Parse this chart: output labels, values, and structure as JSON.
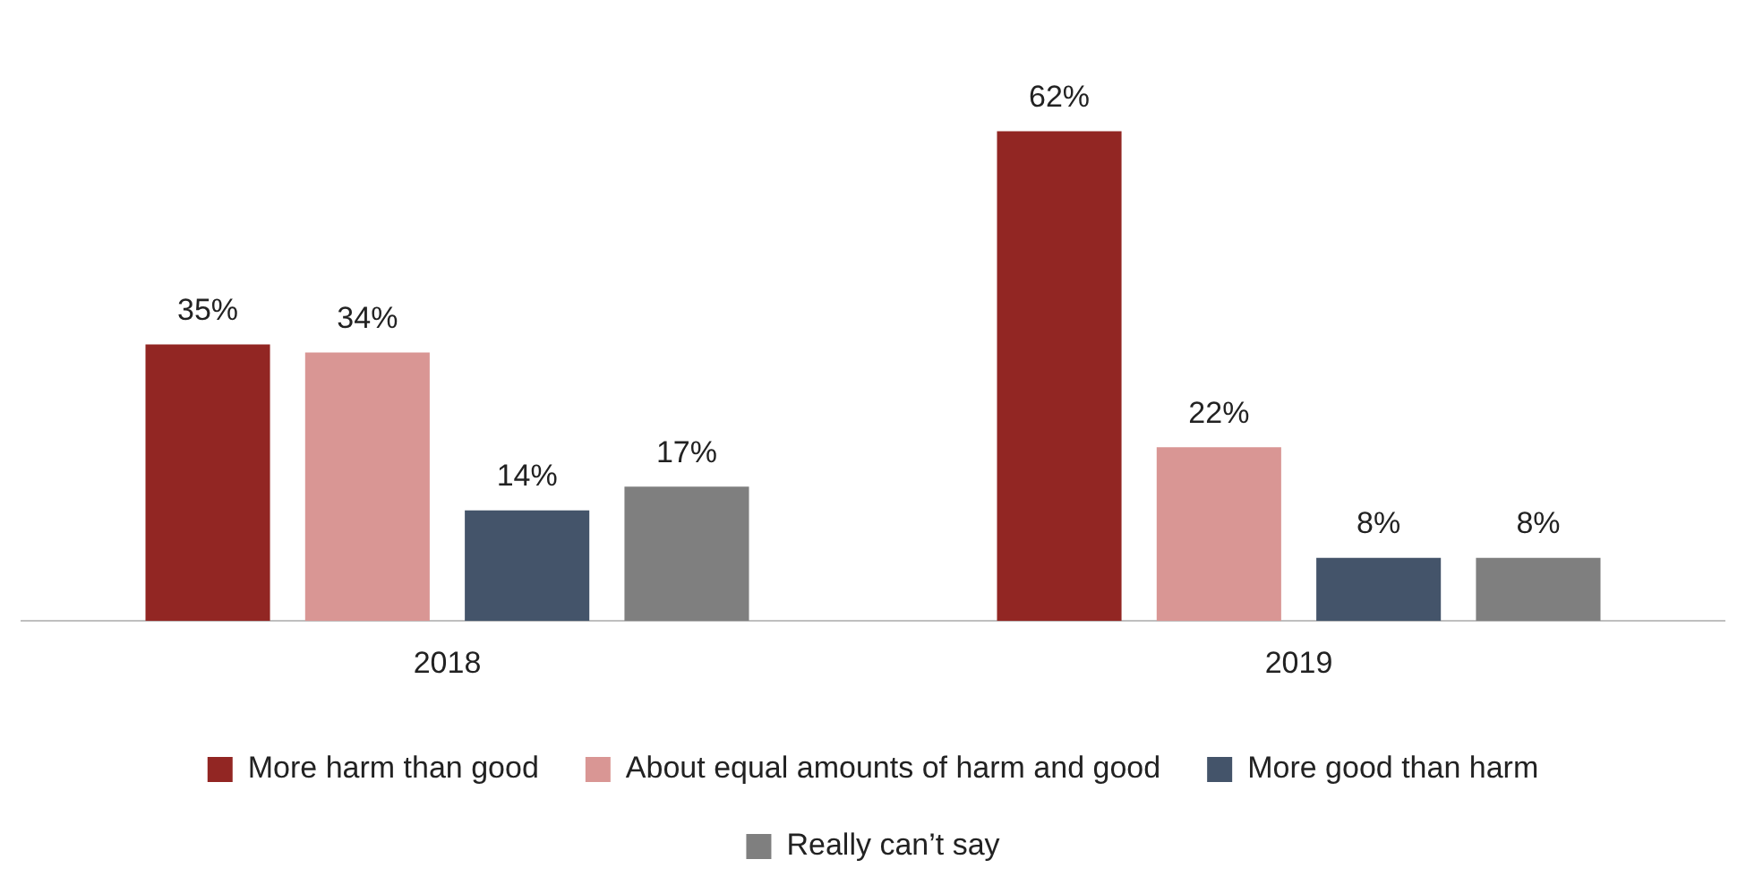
{
  "chart_data": {
    "type": "bar",
    "categories": [
      "2018",
      "2019"
    ],
    "series": [
      {
        "name": "More harm than good",
        "color": "#922623",
        "values": [
          35,
          62
        ],
        "value_labels": [
          "35%",
          "62%"
        ]
      },
      {
        "name": "About equal amounts of harm and good",
        "color": "#d99694",
        "values": [
          34,
          22
        ],
        "value_labels": [
          "34%",
          "22%"
        ]
      },
      {
        "name": "More good than harm",
        "color": "#44546a",
        "values": [
          14,
          8
        ],
        "value_labels": [
          "14%",
          "8%"
        ]
      },
      {
        "name": "Really can’t say",
        "color": "#7f7f7f",
        "values": [
          17,
          8
        ],
        "value_labels": [
          "17%",
          "8%"
        ]
      }
    ],
    "grid": false,
    "legend": "bottom",
    "tick_labels": "x"
  }
}
